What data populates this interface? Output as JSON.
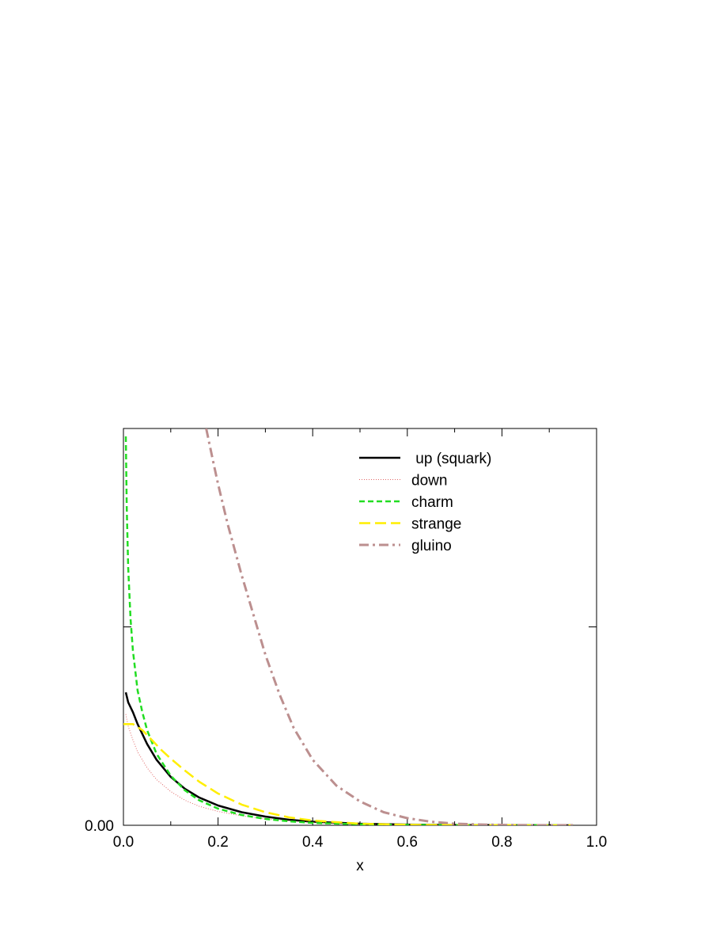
{
  "chart_data": {
    "type": "line",
    "title": "",
    "xlabel": "x",
    "ylabel": "",
    "xlim": [
      0.0,
      1.0
    ],
    "ylim": [
      0.0,
      1.0
    ],
    "x_ticks": [
      {
        "value": 0.0,
        "label": "0.0"
      },
      {
        "value": 0.2,
        "label": "0.2"
      },
      {
        "value": 0.4,
        "label": "0.4"
      },
      {
        "value": 0.6,
        "label": "0.6"
      },
      {
        "value": 0.8,
        "label": "0.8"
      },
      {
        "value": 1.0,
        "label": "1.0"
      }
    ],
    "y_ticks": [
      {
        "value": 0.0,
        "label": "0.00"
      },
      {
        "value": 0.5,
        "label": ""
      }
    ],
    "grid": false,
    "legend_position": "top-right",
    "series": [
      {
        "name": " up (squark)",
        "color": "#000000",
        "style": "solid",
        "x": [
          0.005,
          0.01,
          0.02,
          0.03,
          0.05,
          0.07,
          0.1,
          0.13,
          0.16,
          0.2,
          0.25,
          0.3,
          0.35,
          0.4,
          0.5,
          0.6,
          0.7,
          0.8,
          0.9,
          0.95
        ],
        "y": [
          0.335,
          0.31,
          0.285,
          0.255,
          0.205,
          0.165,
          0.122,
          0.092,
          0.07,
          0.05,
          0.033,
          0.022,
          0.014,
          0.009,
          0.004,
          0.0017,
          0.0007,
          0.0003,
          0.0001,
          0.0
        ]
      },
      {
        "name": "down",
        "color": "#e06666",
        "style": "dotted",
        "x": [
          0.005,
          0.01,
          0.02,
          0.03,
          0.05,
          0.07,
          0.1,
          0.13,
          0.16,
          0.2,
          0.25,
          0.3,
          0.35,
          0.4,
          0.5,
          0.6,
          0.7,
          0.8,
          0.9,
          0.95
        ],
        "y": [
          0.28,
          0.25,
          0.215,
          0.185,
          0.145,
          0.115,
          0.085,
          0.063,
          0.048,
          0.035,
          0.024,
          0.016,
          0.011,
          0.007,
          0.003,
          0.0013,
          0.0005,
          0.0002,
          0.0001,
          0.0
        ]
      },
      {
        "name": "charm",
        "color": "#22dd22",
        "style": "dashed",
        "x": [
          0.005,
          0.007,
          0.01,
          0.015,
          0.02,
          0.03,
          0.04,
          0.05,
          0.07,
          0.1,
          0.13,
          0.16,
          0.2,
          0.25,
          0.3,
          0.35,
          0.4,
          0.5,
          0.6,
          0.7,
          0.8,
          0.9,
          0.95
        ],
        "y": [
          0.98,
          0.8,
          0.65,
          0.52,
          0.44,
          0.34,
          0.285,
          0.24,
          0.18,
          0.125,
          0.088,
          0.063,
          0.042,
          0.026,
          0.016,
          0.01,
          0.006,
          0.0025,
          0.001,
          0.0004,
          0.0002,
          0.0001,
          0.0
        ]
      },
      {
        "name": "strange",
        "color": "#ffee00",
        "style": "longdash",
        "x": [
          0.0,
          0.02,
          0.04,
          0.06,
          0.08,
          0.1,
          0.13,
          0.16,
          0.2,
          0.25,
          0.3,
          0.35,
          0.4,
          0.5,
          0.6,
          0.7,
          0.8,
          0.9,
          0.95
        ],
        "y": [
          0.255,
          0.255,
          0.24,
          0.215,
          0.19,
          0.168,
          0.138,
          0.11,
          0.08,
          0.052,
          0.033,
          0.02,
          0.012,
          0.004,
          0.0013,
          0.0004,
          0.0001,
          0.0,
          0.0
        ]
      },
      {
        "name": "gluino",
        "color": "#bc8f8f",
        "style": "dashdot",
        "x": [
          0.175,
          0.19,
          0.2,
          0.22,
          0.25,
          0.28,
          0.3,
          0.33,
          0.36,
          0.4,
          0.45,
          0.5,
          0.55,
          0.6,
          0.65,
          0.7,
          0.75,
          0.8,
          0.85,
          0.9,
          0.95
        ],
        "y": [
          1.0,
          0.915,
          0.86,
          0.76,
          0.63,
          0.51,
          0.43,
          0.33,
          0.245,
          0.165,
          0.1,
          0.06,
          0.033,
          0.018,
          0.009,
          0.004,
          0.002,
          0.001,
          0.0004,
          0.0002,
          0.0001
        ]
      }
    ]
  }
}
